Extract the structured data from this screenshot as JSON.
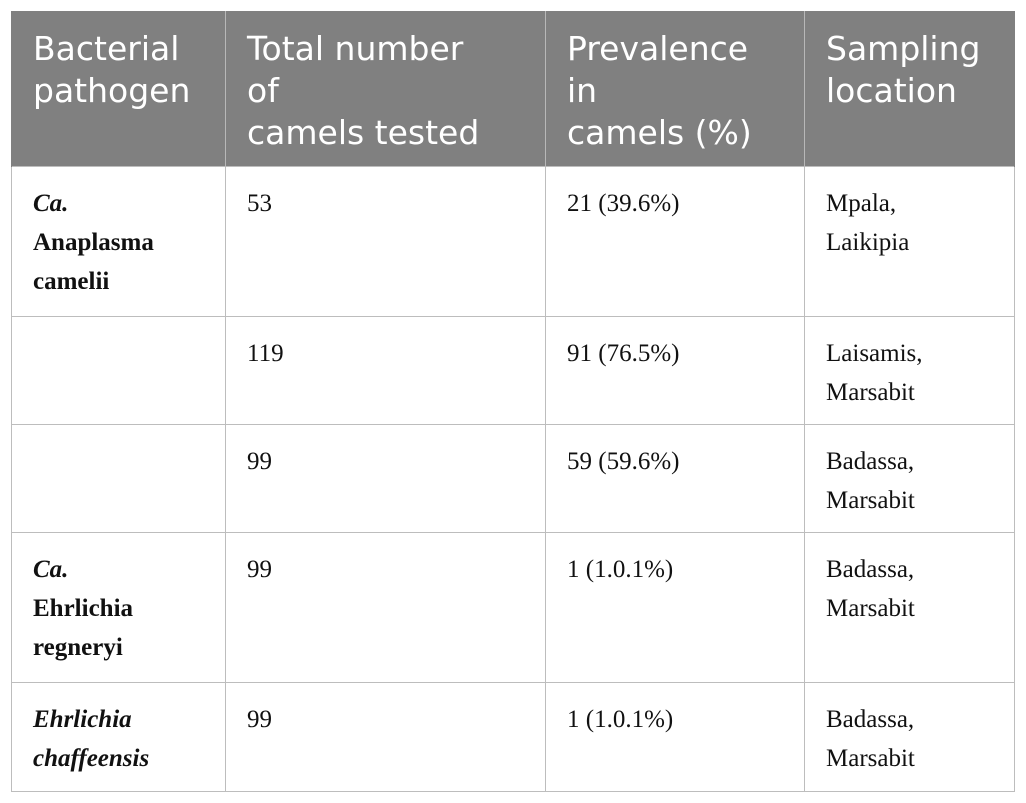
{
  "table": {
    "headers": [
      "Bacterial\npathogen",
      "Total number\nof\ncamels tested",
      "Prevalence\nin\ncamels (%)",
      "Sampling\nlocation"
    ],
    "rows": [
      {
        "pathogen_prefix": "Ca.",
        "pathogen_name": "Anaplasma\ncamelii",
        "total": "53",
        "prevalence": "21 (39.6%)",
        "location": "Mpala,\nLaikipia"
      },
      {
        "pathogen_prefix": "",
        "pathogen_name": "",
        "total": "119",
        "prevalence": "91 (76.5%)",
        "location": "Laisamis,\nMarsabit"
      },
      {
        "pathogen_prefix": "",
        "pathogen_name": "",
        "total": "99",
        "prevalence": "59 (59.6%)",
        "location": "Badassa,\nMarsabit"
      },
      {
        "pathogen_prefix": "Ca.",
        "pathogen_name": "Ehrlichia\nregneryi",
        "total": "99",
        "prevalence": "1 (1.0.1%)",
        "location": "Badassa,\nMarsabit"
      },
      {
        "pathogen_prefix": "",
        "pathogen_name": "Ehrlichia\nchaffeensis",
        "total": "99",
        "prevalence": "1 (1.0.1%)",
        "location": "Badassa,\nMarsabit"
      }
    ]
  },
  "colors": {
    "header_background": "#808080",
    "header_text": "#ffffff",
    "grid_line": "#bdbdbd"
  }
}
